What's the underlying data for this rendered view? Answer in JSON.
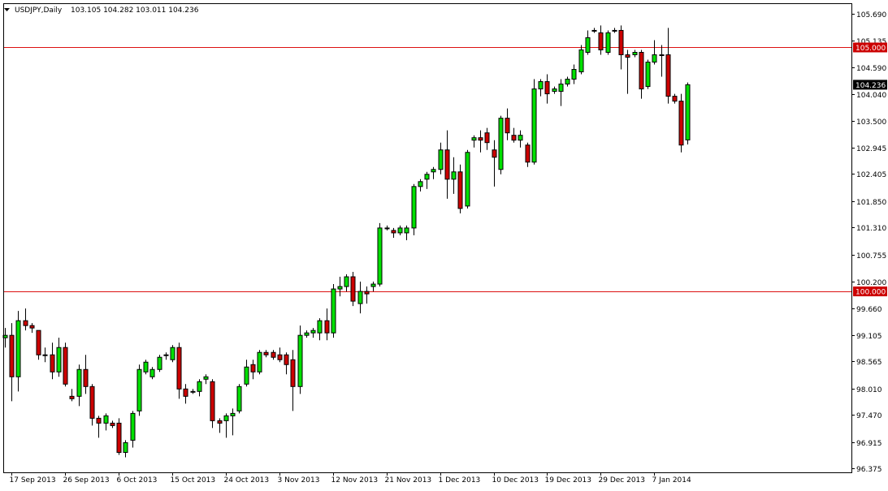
{
  "header": {
    "symbol_label": "USDJPY,Daily",
    "ohlc_text": "103.105 104.282 103.011 104.236"
  },
  "colors": {
    "background": "#ffffff",
    "frame": "#000000",
    "bull_body": "#00e000",
    "bear_body": "#cc0000",
    "wick": "#000000",
    "level_line": "#dd1111",
    "price_tag_bg": "#cc0000",
    "price_tag_text": "#ffffff",
    "current_tag_bg": "#000000",
    "current_tag_text": "#ffffff"
  },
  "chart_data": {
    "type": "candlestick",
    "title": "",
    "xlabel": "",
    "ylabel": "",
    "ylim": [
      96.2,
      105.85
    ],
    "grid": false,
    "y_ticks": [
      "105.690",
      "105.135",
      "104.590",
      "104.040",
      "103.500",
      "102.945",
      "102.405",
      "101.850",
      "101.310",
      "100.755",
      "100.200",
      "99.660",
      "99.105",
      "98.565",
      "98.010",
      "97.470",
      "96.915",
      "96.375"
    ],
    "x_ticks": [
      {
        "label": "17 Sep 2013",
        "index": 1
      },
      {
        "label": "26 Sep 2013",
        "index": 9
      },
      {
        "label": "6 Oct 2013",
        "index": 17
      },
      {
        "label": "15 Oct 2013",
        "index": 25
      },
      {
        "label": "24 Oct 2013",
        "index": 33
      },
      {
        "label": "3 Nov 2013",
        "index": 41
      },
      {
        "label": "12 Nov 2013",
        "index": 49
      },
      {
        "label": "21 Nov 2013",
        "index": 57
      },
      {
        "label": "1 Dec 2013",
        "index": 65
      },
      {
        "label": "10 Dec 2013",
        "index": 73
      },
      {
        "label": "19 Dec 2013",
        "index": 81
      },
      {
        "label": "29 Dec 2013",
        "index": 89
      },
      {
        "label": "7 Jan 2014",
        "index": 97
      }
    ],
    "horizontal_levels": [
      {
        "value": 105.0,
        "label": "105.000"
      },
      {
        "value": 100.0,
        "label": "100.000"
      }
    ],
    "current_price": {
      "value": 104.236,
      "label": "104.236"
    },
    "candles": [
      {
        "o": 99.05,
        "h": 99.25,
        "l": 98.85,
        "c": 99.1
      },
      {
        "o": 99.1,
        "h": 99.35,
        "l": 97.75,
        "c": 98.25
      },
      {
        "o": 98.25,
        "h": 99.6,
        "l": 97.95,
        "c": 99.4
      },
      {
        "o": 99.4,
        "h": 99.65,
        "l": 99.2,
        "c": 99.3
      },
      {
        "o": 99.3,
        "h": 99.35,
        "l": 99.15,
        "c": 99.25
      },
      {
        "o": 99.2,
        "h": 99.2,
        "l": 98.6,
        "c": 98.7
      },
      {
        "o": 98.7,
        "h": 98.85,
        "l": 98.55,
        "c": 98.7
      },
      {
        "o": 98.7,
        "h": 98.95,
        "l": 98.2,
        "c": 98.35
      },
      {
        "o": 98.35,
        "h": 99.05,
        "l": 98.25,
        "c": 98.85
      },
      {
        "o": 98.85,
        "h": 98.95,
        "l": 98.05,
        "c": 98.1
      },
      {
        "o": 97.85,
        "h": 98.0,
        "l": 97.75,
        "c": 97.8
      },
      {
        "o": 97.85,
        "h": 98.5,
        "l": 97.65,
        "c": 98.4
      },
      {
        "o": 98.4,
        "h": 98.7,
        "l": 97.9,
        "c": 98.05
      },
      {
        "o": 98.05,
        "h": 98.1,
        "l": 97.25,
        "c": 97.4
      },
      {
        "o": 97.4,
        "h": 97.45,
        "l": 97.0,
        "c": 97.3
      },
      {
        "o": 97.3,
        "h": 97.5,
        "l": 97.15,
        "c": 97.45
      },
      {
        "o": 97.3,
        "h": 97.35,
        "l": 97.2,
        "c": 97.25
      },
      {
        "o": 97.3,
        "h": 97.4,
        "l": 96.65,
        "c": 96.7
      },
      {
        "o": 96.7,
        "h": 96.95,
        "l": 96.6,
        "c": 96.9
      },
      {
        "o": 96.95,
        "h": 97.55,
        "l": 96.8,
        "c": 97.5
      },
      {
        "o": 97.55,
        "h": 98.5,
        "l": 97.45,
        "c": 98.4
      },
      {
        "o": 98.35,
        "h": 98.6,
        "l": 98.3,
        "c": 98.55
      },
      {
        "o": 98.25,
        "h": 98.45,
        "l": 98.2,
        "c": 98.4
      },
      {
        "o": 98.4,
        "h": 98.7,
        "l": 98.35,
        "c": 98.65
      },
      {
        "o": 98.7,
        "h": 98.75,
        "l": 98.6,
        "c": 98.7
      },
      {
        "o": 98.6,
        "h": 98.9,
        "l": 98.55,
        "c": 98.85
      },
      {
        "o": 98.85,
        "h": 98.95,
        "l": 97.8,
        "c": 98.0
      },
      {
        "o": 98.0,
        "h": 98.1,
        "l": 97.7,
        "c": 97.85
      },
      {
        "o": 97.95,
        "h": 98.0,
        "l": 97.9,
        "c": 97.95
      },
      {
        "o": 97.95,
        "h": 98.2,
        "l": 97.85,
        "c": 98.15
      },
      {
        "o": 98.2,
        "h": 98.3,
        "l": 98.1,
        "c": 98.25
      },
      {
        "o": 98.15,
        "h": 98.2,
        "l": 97.2,
        "c": 97.35
      },
      {
        "o": 97.35,
        "h": 97.4,
        "l": 97.1,
        "c": 97.3
      },
      {
        "o": 97.35,
        "h": 97.5,
        "l": 97.0,
        "c": 97.45
      },
      {
        "o": 97.45,
        "h": 97.6,
        "l": 97.05,
        "c": 97.5
      },
      {
        "o": 97.55,
        "h": 98.1,
        "l": 97.5,
        "c": 98.05
      },
      {
        "o": 98.1,
        "h": 98.6,
        "l": 98.05,
        "c": 98.45
      },
      {
        "o": 98.5,
        "h": 98.6,
        "l": 98.2,
        "c": 98.35
      },
      {
        "o": 98.35,
        "h": 98.8,
        "l": 98.3,
        "c": 98.75
      },
      {
        "o": 98.75,
        "h": 98.8,
        "l": 98.65,
        "c": 98.7
      },
      {
        "o": 98.75,
        "h": 98.8,
        "l": 98.6,
        "c": 98.65
      },
      {
        "o": 98.7,
        "h": 98.85,
        "l": 98.55,
        "c": 98.6
      },
      {
        "o": 98.7,
        "h": 98.75,
        "l": 98.3,
        "c": 98.5
      },
      {
        "o": 98.6,
        "h": 98.8,
        "l": 97.55,
        "c": 98.05
      },
      {
        "o": 98.05,
        "h": 99.3,
        "l": 97.9,
        "c": 99.1
      },
      {
        "o": 99.1,
        "h": 99.2,
        "l": 99.05,
        "c": 99.15
      },
      {
        "o": 99.15,
        "h": 99.25,
        "l": 99.05,
        "c": 99.2
      },
      {
        "o": 99.15,
        "h": 99.45,
        "l": 99.0,
        "c": 99.4
      },
      {
        "o": 99.4,
        "h": 99.65,
        "l": 99.0,
        "c": 99.15
      },
      {
        "o": 99.15,
        "h": 100.15,
        "l": 99.05,
        "c": 100.05
      },
      {
        "o": 100.05,
        "h": 100.3,
        "l": 99.9,
        "c": 100.1
      },
      {
        "o": 100.1,
        "h": 100.35,
        "l": 100.0,
        "c": 100.3
      },
      {
        "o": 100.3,
        "h": 100.4,
        "l": 99.7,
        "c": 99.8
      },
      {
        "o": 99.75,
        "h": 100.2,
        "l": 99.55,
        "c": 100.0
      },
      {
        "o": 100.0,
        "h": 100.1,
        "l": 99.75,
        "c": 99.95
      },
      {
        "o": 100.1,
        "h": 100.2,
        "l": 100.0,
        "c": 100.15
      },
      {
        "o": 100.15,
        "h": 101.4,
        "l": 100.1,
        "c": 101.3
      },
      {
        "o": 101.3,
        "h": 101.35,
        "l": 101.25,
        "c": 101.3
      },
      {
        "o": 101.25,
        "h": 101.3,
        "l": 101.1,
        "c": 101.2
      },
      {
        "o": 101.2,
        "h": 101.35,
        "l": 101.15,
        "c": 101.3
      },
      {
        "o": 101.2,
        "h": 101.35,
        "l": 101.05,
        "c": 101.3
      },
      {
        "o": 101.3,
        "h": 102.2,
        "l": 101.15,
        "c": 102.15
      },
      {
        "o": 102.15,
        "h": 102.3,
        "l": 102.05,
        "c": 102.25
      },
      {
        "o": 102.3,
        "h": 102.45,
        "l": 102.1,
        "c": 102.4
      },
      {
        "o": 102.45,
        "h": 102.55,
        "l": 102.3,
        "c": 102.5
      },
      {
        "o": 102.5,
        "h": 103.05,
        "l": 102.4,
        "c": 102.9
      },
      {
        "o": 102.9,
        "h": 103.3,
        "l": 101.9,
        "c": 102.3
      },
      {
        "o": 102.3,
        "h": 102.75,
        "l": 102.0,
        "c": 102.45
      },
      {
        "o": 102.45,
        "h": 102.6,
        "l": 101.6,
        "c": 101.7
      },
      {
        "o": 101.75,
        "h": 102.9,
        "l": 101.7,
        "c": 102.85
      },
      {
        "o": 103.1,
        "h": 103.2,
        "l": 102.95,
        "c": 103.15
      },
      {
        "o": 103.15,
        "h": 103.3,
        "l": 102.85,
        "c": 103.1
      },
      {
        "o": 103.25,
        "h": 103.35,
        "l": 102.9,
        "c": 103.05
      },
      {
        "o": 102.9,
        "h": 103.1,
        "l": 102.15,
        "c": 102.75
      },
      {
        "o": 102.5,
        "h": 103.6,
        "l": 102.4,
        "c": 103.55
      },
      {
        "o": 103.55,
        "h": 103.75,
        "l": 103.1,
        "c": 103.25
      },
      {
        "o": 103.2,
        "h": 103.35,
        "l": 103.05,
        "c": 103.1
      },
      {
        "o": 103.1,
        "h": 103.3,
        "l": 102.95,
        "c": 103.2
      },
      {
        "o": 103.0,
        "h": 103.05,
        "l": 102.55,
        "c": 102.65
      },
      {
        "o": 102.65,
        "h": 104.35,
        "l": 102.6,
        "c": 104.15
      },
      {
        "o": 104.15,
        "h": 104.35,
        "l": 104.0,
        "c": 104.3
      },
      {
        "o": 104.3,
        "h": 104.45,
        "l": 103.85,
        "c": 104.05
      },
      {
        "o": 104.1,
        "h": 104.2,
        "l": 104.05,
        "c": 104.15
      },
      {
        "o": 104.1,
        "h": 104.35,
        "l": 103.8,
        "c": 104.25
      },
      {
        "o": 104.25,
        "h": 104.4,
        "l": 104.2,
        "c": 104.35
      },
      {
        "o": 104.35,
        "h": 104.65,
        "l": 104.25,
        "c": 104.55
      },
      {
        "o": 104.5,
        "h": 105.05,
        "l": 104.45,
        "c": 104.95
      },
      {
        "o": 104.9,
        "h": 105.35,
        "l": 104.85,
        "c": 105.2
      },
      {
        "o": 105.35,
        "h": 105.4,
        "l": 105.3,
        "c": 105.35
      },
      {
        "o": 105.3,
        "h": 105.45,
        "l": 104.85,
        "c": 104.95
      },
      {
        "o": 104.9,
        "h": 105.35,
        "l": 104.85,
        "c": 105.3
      },
      {
        "o": 105.35,
        "h": 105.4,
        "l": 105.3,
        "c": 105.35
      },
      {
        "o": 105.35,
        "h": 105.45,
        "l": 104.55,
        "c": 104.85
      },
      {
        "o": 104.85,
        "h": 104.95,
        "l": 104.05,
        "c": 104.8
      },
      {
        "o": 104.85,
        "h": 104.95,
        "l": 104.8,
        "c": 104.9
      },
      {
        "o": 104.9,
        "h": 104.95,
        "l": 103.95,
        "c": 104.15
      },
      {
        "o": 104.2,
        "h": 104.75,
        "l": 104.15,
        "c": 104.7
      },
      {
        "o": 104.7,
        "h": 105.15,
        "l": 104.65,
        "c": 104.85
      },
      {
        "o": 104.85,
        "h": 105.05,
        "l": 104.4,
        "c": 104.85
      },
      {
        "o": 104.85,
        "h": 105.4,
        "l": 103.85,
        "c": 104.0
      },
      {
        "o": 104.0,
        "h": 104.05,
        "l": 103.85,
        "c": 103.9
      },
      {
        "o": 103.9,
        "h": 104.05,
        "l": 102.85,
        "c": 103.0
      },
      {
        "o": 103.105,
        "h": 104.282,
        "l": 103.011,
        "c": 104.236
      }
    ]
  }
}
